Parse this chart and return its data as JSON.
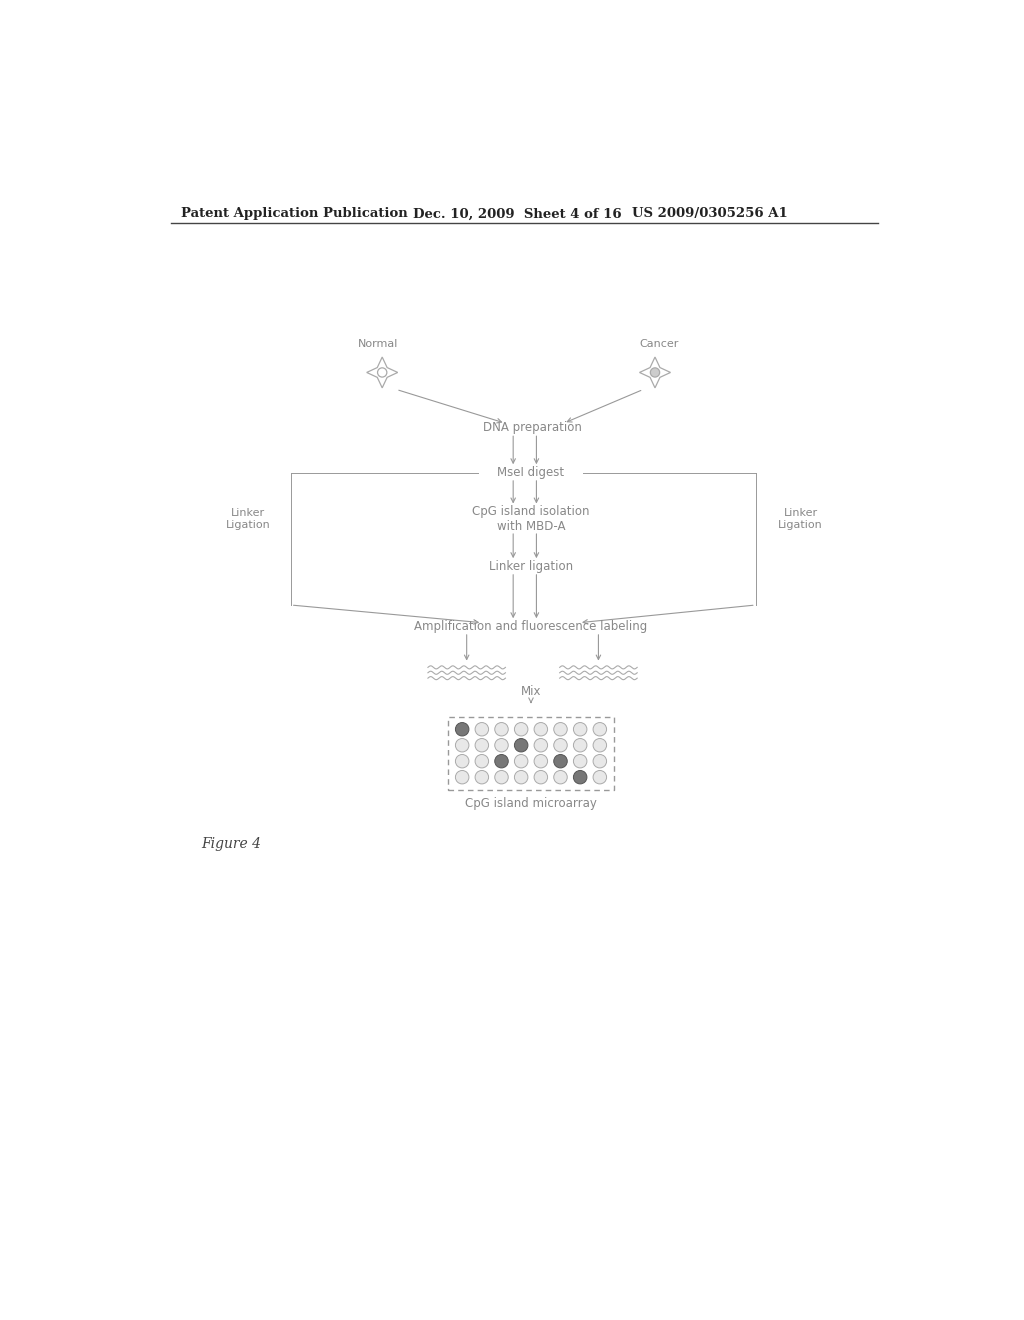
{
  "bg_color": "#ffffff",
  "header_left": "Patent Application Publication",
  "header_mid": "Dec. 10, 2009  Sheet 4 of 16",
  "header_right": "US 2009/0305256 A1",
  "figure_label": "Figure 4",
  "normal_label": "Normal",
  "cancer_label": "Cancer",
  "linker_ligation_left": "Linker\nLigation",
  "linker_ligation_right": "Linker\nLigation",
  "step1": "DNA preparation",
  "step2": "MseI digest",
  "step3": "CpG island isolation\nwith MBD-A",
  "step4": "Linker ligation",
  "step5": "Amplification and fluorescence labeling",
  "mix_label": "Mix",
  "array_label": "CpG island microarray",
  "text_color": "#888888",
  "arrow_color": "#999999",
  "dot_colors_grid": [
    [
      "dark",
      "light",
      "light",
      "light",
      "light",
      "light",
      "light",
      "light"
    ],
    [
      "light",
      "light",
      "light",
      "dark",
      "light",
      "light",
      "light",
      "light"
    ],
    [
      "light",
      "light",
      "dark",
      "light",
      "light",
      "dark",
      "light",
      "light"
    ],
    [
      "light",
      "light",
      "light",
      "light",
      "light",
      "light",
      "dark",
      "light"
    ]
  ]
}
